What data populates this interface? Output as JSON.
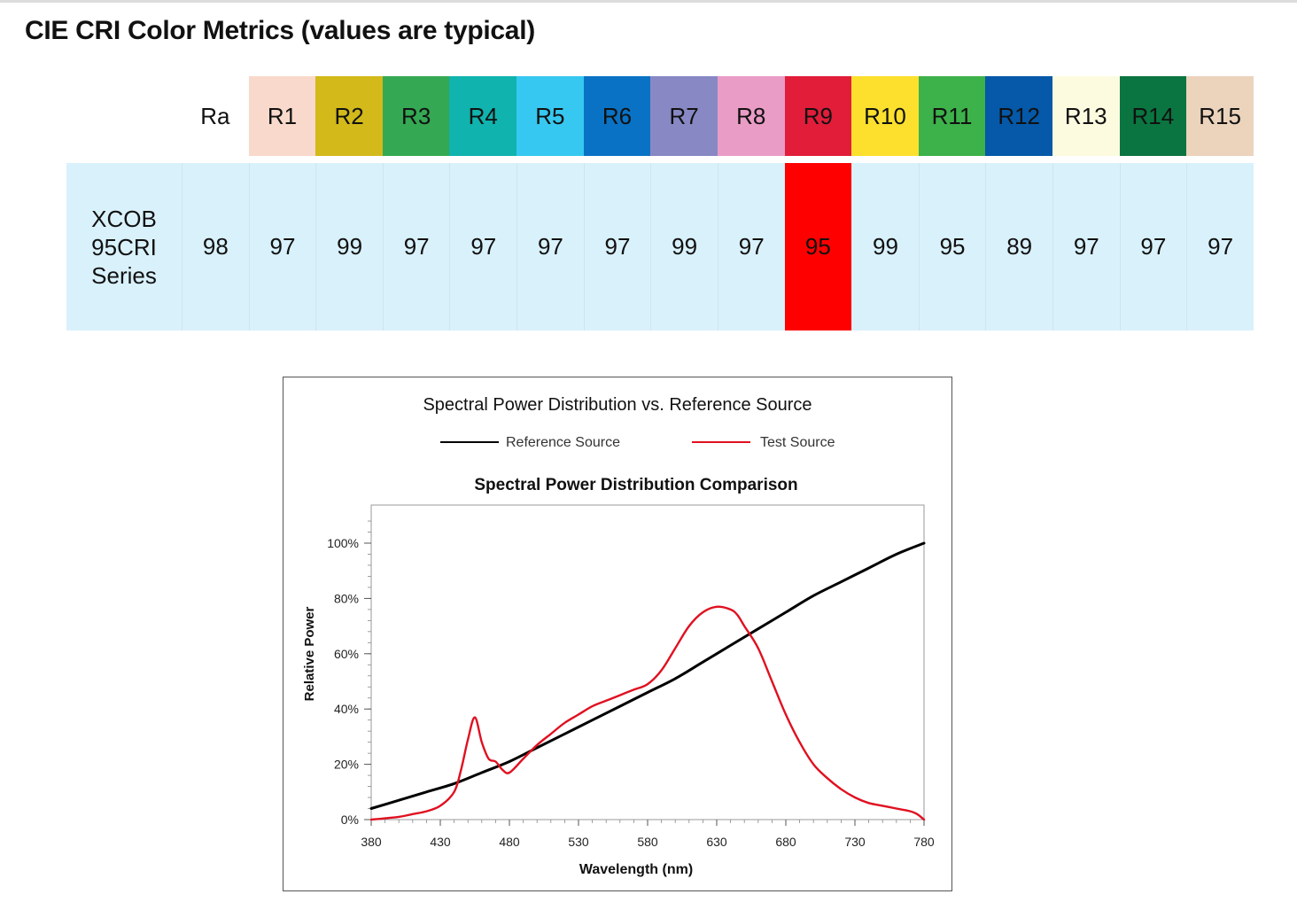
{
  "page": {
    "title": "CIE CRI Color Metrics (values are typical)"
  },
  "cri_table": {
    "corner_label": "",
    "headers": [
      {
        "label": "Ra",
        "color": "#ffffff"
      },
      {
        "label": "R1",
        "color": "#f9d9cb"
      },
      {
        "label": "R2",
        "color": "#d3b91a"
      },
      {
        "label": "R3",
        "color": "#34a853"
      },
      {
        "label": "R4",
        "color": "#10b3ad"
      },
      {
        "label": "R5",
        "color": "#36c8f0"
      },
      {
        "label": "R6",
        "color": "#0a72c4"
      },
      {
        "label": "R7",
        "color": "#8888c4"
      },
      {
        "label": "R8",
        "color": "#e99cc5"
      },
      {
        "label": "R9",
        "color": "#e11d3a"
      },
      {
        "label": "R10",
        "color": "#fde02d"
      },
      {
        "label": "R11",
        "color": "#3db14a"
      },
      {
        "label": "R12",
        "color": "#0559a8"
      },
      {
        "label": "R13",
        "color": "#fcfbe0"
      },
      {
        "label": "R14",
        "color": "#0a7540"
      },
      {
        "label": "R15",
        "color": "#ebd3bc"
      }
    ],
    "row": {
      "label_lines": [
        "XCOB",
        "95CRI",
        "Series"
      ],
      "values": [
        "98",
        "97",
        "99",
        "97",
        "97",
        "97",
        "97",
        "99",
        "97",
        "95",
        "99",
        "95",
        "89",
        "97",
        "97",
        "97"
      ],
      "highlight": {
        "column": "R9",
        "color": "#ff0000"
      }
    }
  },
  "chart_data": {
    "type": "line",
    "title": "Spectral Power Distribution vs. Reference Source",
    "subtitle": "Spectral Power Distribution Comparison",
    "xlabel": "Wavelength (nm)",
    "ylabel": "Relative Power",
    "xlim": [
      380,
      780
    ],
    "ylim": [
      0,
      100
    ],
    "x_ticks": [
      380,
      430,
      480,
      530,
      580,
      630,
      680,
      730,
      780
    ],
    "y_ticks": [
      0,
      20,
      40,
      60,
      80,
      100
    ],
    "y_tick_labels": [
      "0%",
      "20%",
      "40%",
      "60%",
      "80%",
      "100%"
    ],
    "grid": false,
    "legend": "top-center",
    "series": [
      {
        "name": "Reference Source",
        "color": "#000000",
        "x": [
          380,
          400,
          420,
          440,
          460,
          480,
          500,
          520,
          540,
          560,
          580,
          600,
          620,
          640,
          660,
          680,
          700,
          720,
          740,
          760,
          780
        ],
        "y": [
          4,
          7,
          10,
          13,
          17,
          21,
          26,
          31,
          36,
          41,
          46,
          51,
          57,
          63,
          69,
          75,
          81,
          86,
          91,
          96,
          100
        ]
      },
      {
        "name": "Test Source",
        "color": "#e01020",
        "x": [
          380,
          400,
          410,
          420,
          430,
          440,
          445,
          450,
          455,
          460,
          465,
          470,
          475,
          480,
          490,
          500,
          510,
          520,
          530,
          540,
          550,
          560,
          570,
          580,
          590,
          600,
          610,
          620,
          630,
          640,
          645,
          650,
          660,
          670,
          680,
          690,
          700,
          710,
          720,
          730,
          740,
          750,
          760,
          770,
          775,
          780
        ],
        "y": [
          0,
          1,
          2,
          3,
          5,
          10,
          18,
          29,
          37,
          28,
          22,
          21,
          18,
          17,
          22,
          27,
          31,
          35,
          38,
          41,
          43,
          45,
          47,
          49,
          54,
          62,
          70,
          75,
          77,
          76,
          74,
          70,
          62,
          50,
          38,
          28,
          20,
          15,
          11,
          8,
          6,
          5,
          4,
          3,
          2,
          0
        ]
      }
    ]
  }
}
